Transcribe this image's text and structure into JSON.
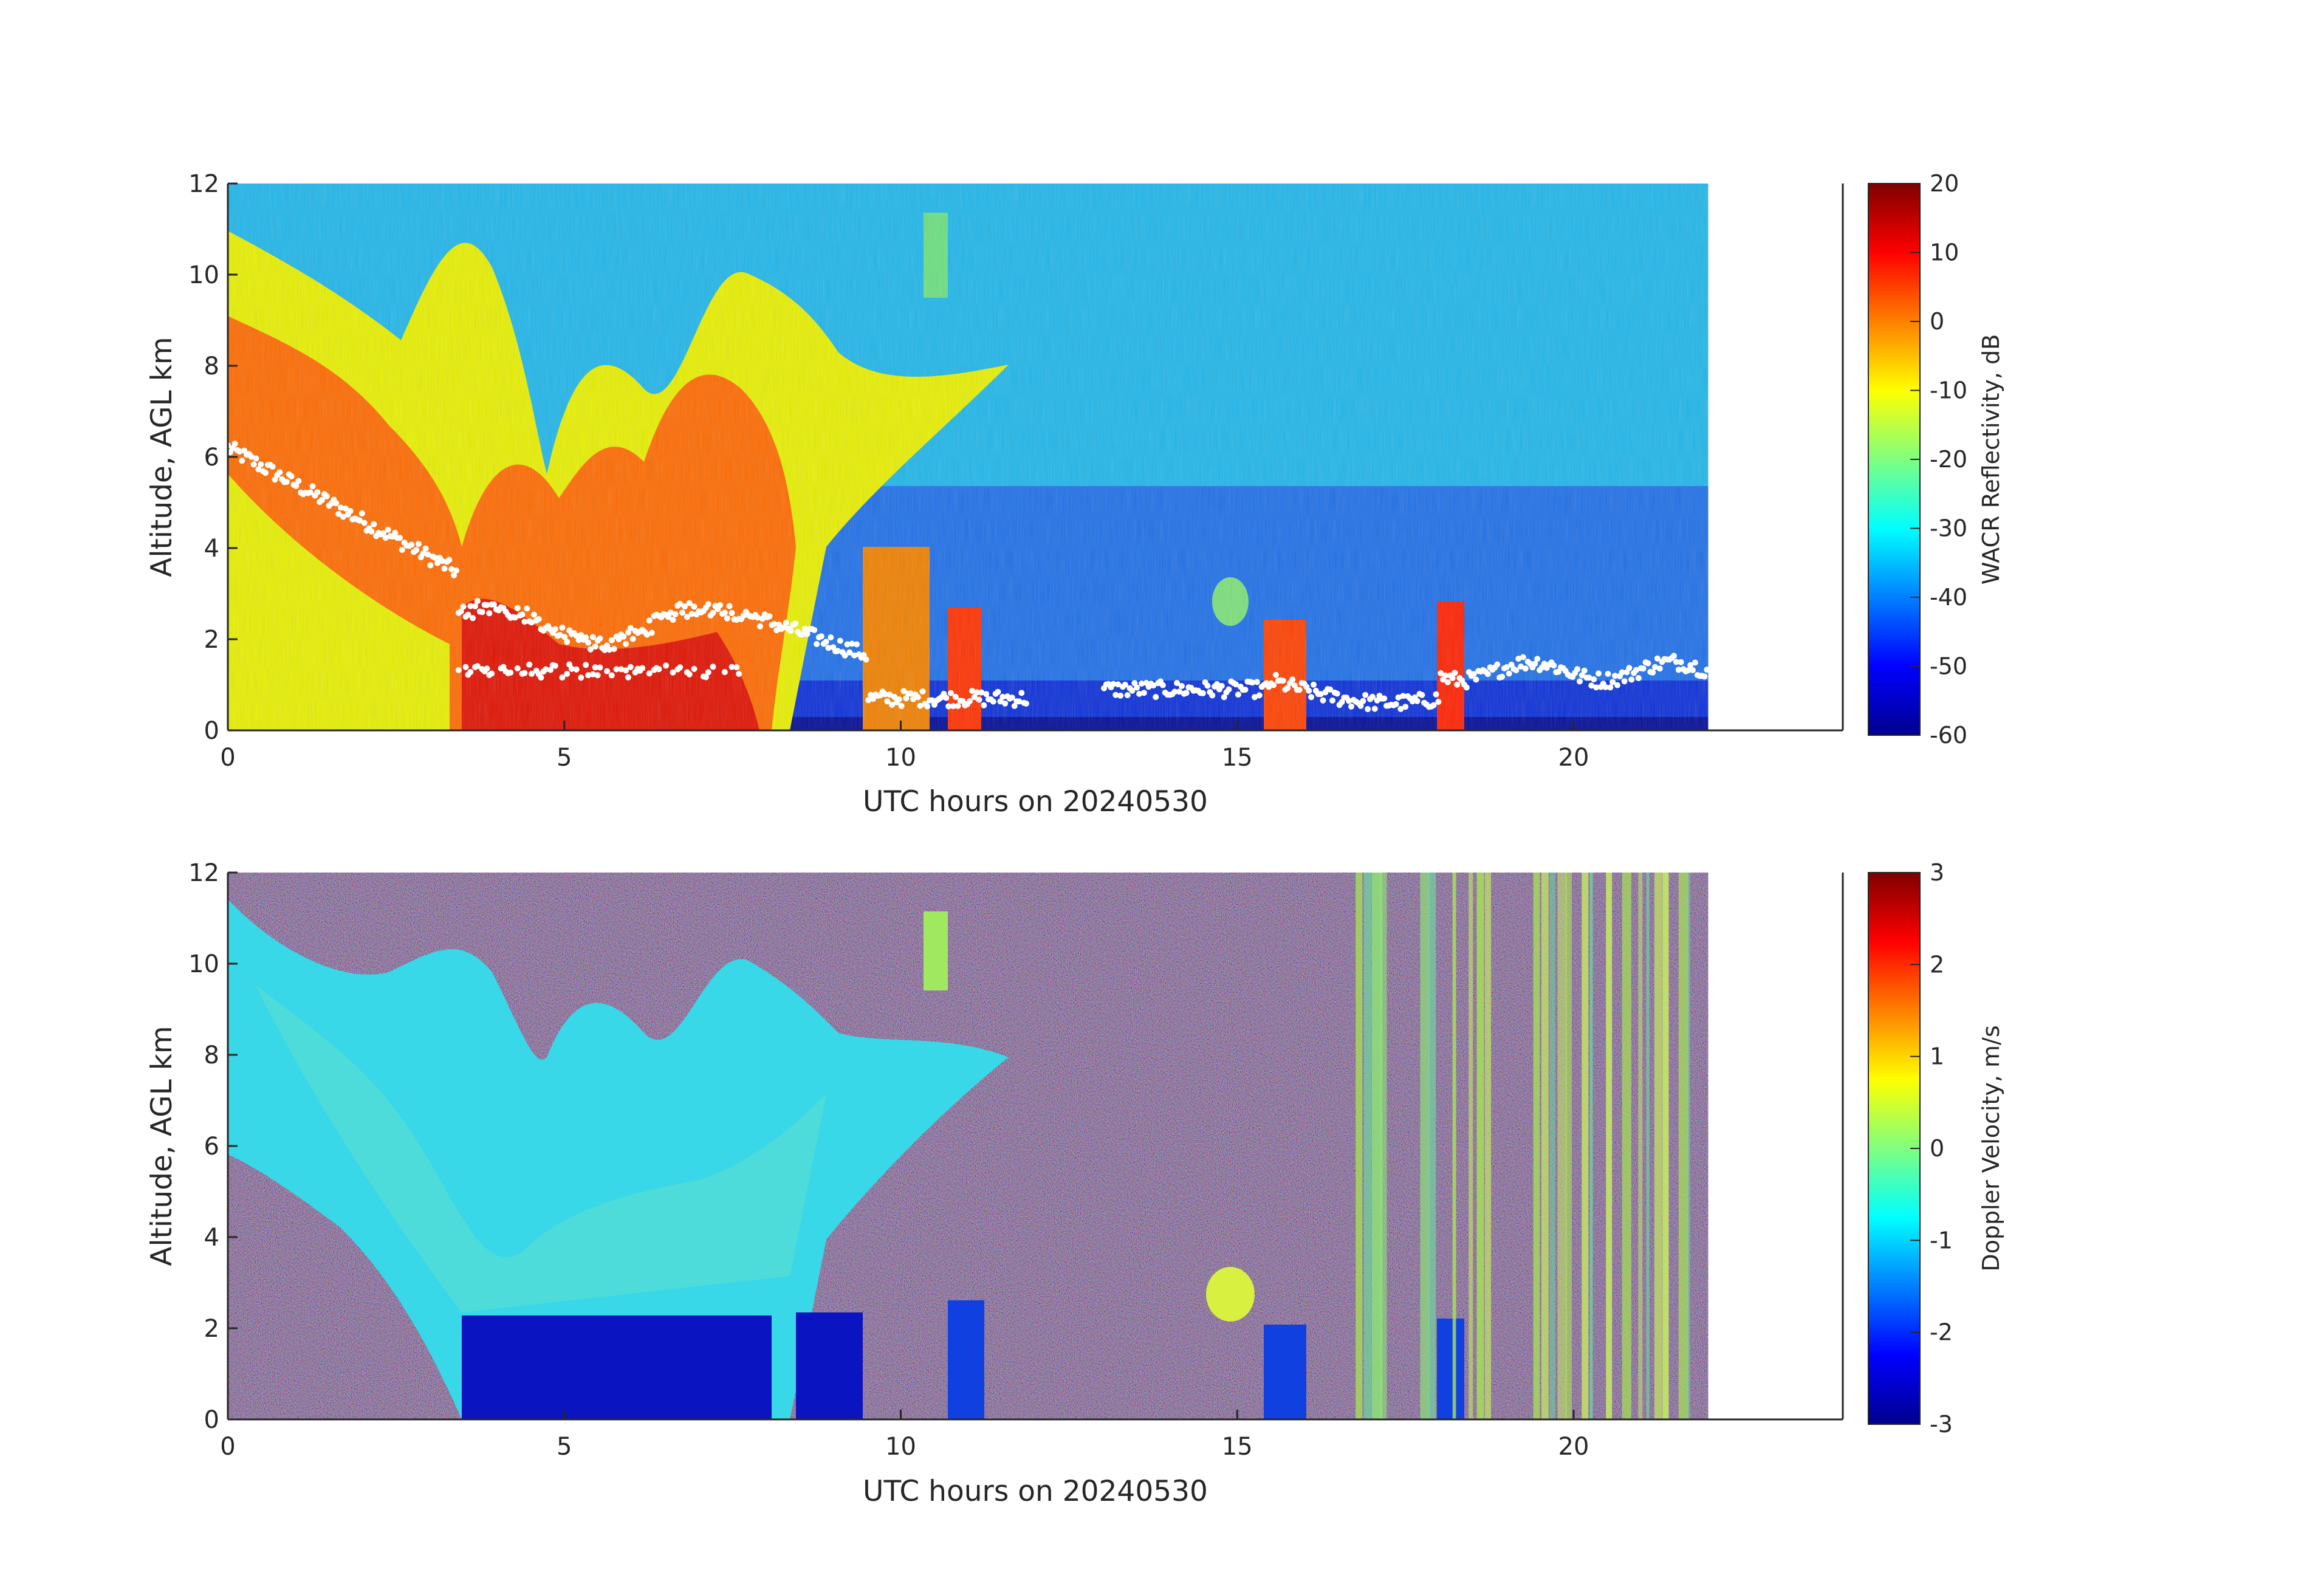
{
  "chart_data": [
    {
      "type": "heatmap",
      "name": "reflectivity",
      "xlabel": "UTC hours on 20240530",
      "ylabel": "Altitude, AGL km",
      "xlim": [
        0,
        24
      ],
      "ylim": [
        0,
        12
      ],
      "xticks": [
        "0",
        "5",
        "10",
        "15",
        "20"
      ],
      "yticks": [
        "0",
        "2",
        "4",
        "6",
        "8",
        "10",
        "12"
      ],
      "data_end_hour": 22,
      "colorbar": {
        "label": "WACR Reflectivity, dB",
        "range": [
          -60,
          20
        ],
        "ticks": [
          "20",
          "10",
          "0",
          "-10",
          "-20",
          "-30",
          "-40",
          "-50",
          "-60"
        ],
        "colormap": "jet"
      },
      "overlay": "cloud-base points (white)"
    },
    {
      "type": "heatmap",
      "name": "doppler",
      "xlabel": "UTC hours on 20240530",
      "ylabel": "Altitude, AGL km",
      "xlim": [
        0,
        24
      ],
      "ylim": [
        0,
        12
      ],
      "xticks": [
        "0",
        "5",
        "10",
        "15",
        "20"
      ],
      "yticks": [
        "0",
        "2",
        "4",
        "6",
        "8",
        "10",
        "12"
      ],
      "data_end_hour": 22,
      "colorbar": {
        "label": "Doppler Velocity, m/s",
        "range": [
          -3,
          3
        ],
        "ticks": [
          "3",
          "2",
          "1",
          "0",
          "-1",
          "-2",
          "-3"
        ],
        "colormap": "jet"
      }
    }
  ]
}
